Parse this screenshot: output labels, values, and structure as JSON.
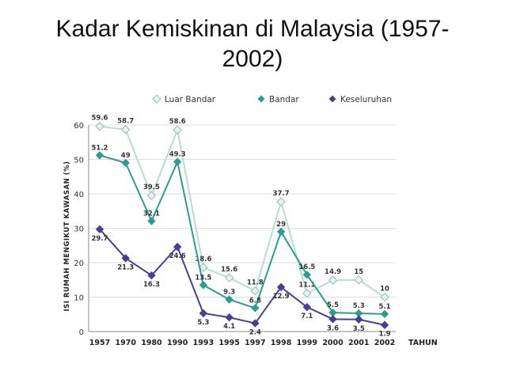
{
  "slide": {
    "title_line1": "Kadar Kemiskinan di Malaysia (1957-",
    "title_line2": "2002)"
  },
  "chart_data": {
    "type": "line",
    "title": "Kadar Kemiskinan di Malaysia (1957-2002)",
    "xlabel": "TAHUN",
    "ylabel": "ISI RUMAH MENGIKUT KAWASAN (%)",
    "categories": [
      "1957",
      "1970",
      "1980",
      "1990",
      "1993",
      "1995",
      "1997",
      "1998",
      "1999",
      "2000",
      "2001",
      "2002"
    ],
    "ylim": [
      0,
      60
    ],
    "yticks": [
      0,
      10,
      20,
      30,
      40,
      50,
      60
    ],
    "grid": true,
    "legend": "top",
    "series": [
      {
        "name": "Luar Bandar",
        "color": "#bfdcd6",
        "marker": "diamond-hollow",
        "values": [
          59.6,
          58.7,
          39.5,
          58.6,
          18.6,
          15.6,
          11.8,
          37.7,
          11.1,
          14.9,
          15,
          10
        ],
        "labels": [
          "59.6",
          "58.7",
          "39.5",
          "58.6",
          "18.6",
          "15.6",
          "11.8",
          "37.7",
          "11.1",
          "14.9",
          "15",
          "10"
        ]
      },
      {
        "name": "Bandar",
        "color": "#2a9d8f",
        "marker": "diamond",
        "values": [
          51.2,
          49,
          32.1,
          49.3,
          13.5,
          9.3,
          6.8,
          29,
          16.5,
          5.5,
          5.3,
          5.1
        ],
        "labels": [
          "51.2",
          "49",
          "32.1",
          "49.3",
          "13.5",
          "9.3",
          "6.8",
          "29",
          "16.5",
          "5.5",
          "5.3",
          "5.1"
        ]
      },
      {
        "name": "Keseluruhan",
        "color": "#4b3d91",
        "marker": "diamond",
        "values": [
          29.7,
          21.3,
          16.3,
          24.6,
          5.3,
          4.1,
          2.4,
          12.9,
          7.1,
          3.6,
          3.5,
          1.9
        ],
        "labels": [
          "29.7",
          "21.3",
          "16.3",
          "24.6",
          "5.3",
          "4.1",
          "2.4",
          "12.9",
          "7.1",
          "3.6",
          "3.5",
          "1.9"
        ]
      }
    ]
  }
}
